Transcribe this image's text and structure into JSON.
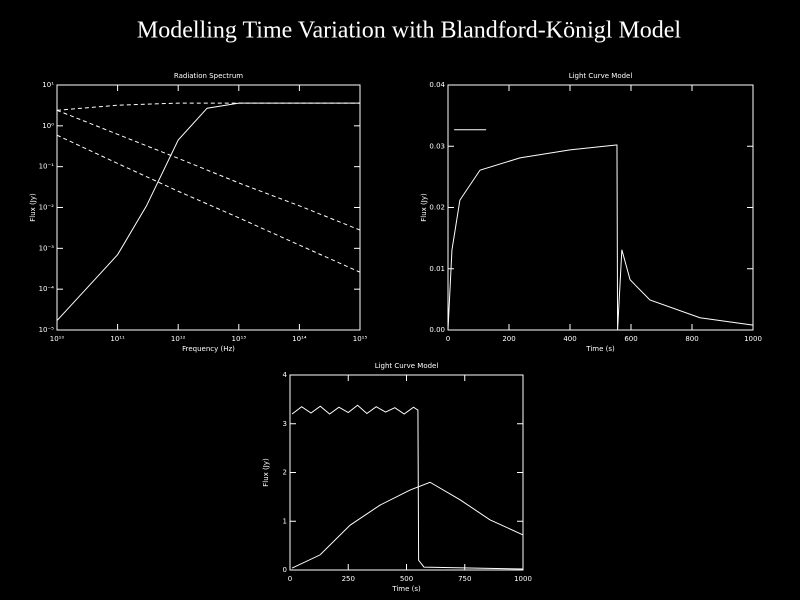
{
  "title": "Modelling Time Variation with Blandford-Königl Model",
  "chart_data": [
    {
      "type": "line",
      "title": "Radiation Spectrum",
      "x_label": "Frequency (Hz)",
      "y_label": "Flux (Jy)",
      "xscale": "log",
      "yscale": "log",
      "xlim": [
        10000000000.0,
        1000000000000000.0
      ],
      "ylim": [
        1e-05,
        10
      ],
      "xticks": [
        {
          "value": 10000000000.0,
          "label": "10¹⁰"
        },
        {
          "value": 100000000000.0,
          "label": "10¹¹"
        },
        {
          "value": 1000000000000.0,
          "label": "10¹²"
        },
        {
          "value": 10000000000000.0,
          "label": "10¹³"
        },
        {
          "value": 100000000000000.0,
          "label": "10¹⁴"
        },
        {
          "value": 1000000000000000.0,
          "label": "10¹⁵"
        }
      ],
      "yticks": [
        {
          "value": 1e-05,
          "label": "10⁻⁵"
        },
        {
          "value": 0.0001,
          "label": "10⁻⁴"
        },
        {
          "value": 0.001,
          "label": "10⁻³"
        },
        {
          "value": 0.01,
          "label": "10⁻²"
        },
        {
          "value": 0.1,
          "label": "10⁻¹"
        },
        {
          "value": 1,
          "label": "10⁰"
        },
        {
          "value": 10,
          "label": "10¹"
        }
      ],
      "series": [
        {
          "color": "#ffffff",
          "dash": false,
          "x": [
            10000000000.0,
            30000000000.0,
            100000000000.0,
            300000000000.0,
            1000000000000.0,
            3000000000000.0,
            10000000000000.0,
            100000000000000.0,
            1000000000000000.0
          ],
          "values": [
            1.7e-05,
            0.0001,
            0.0007,
            0.011,
            0.45,
            2.7,
            3.6,
            3.6,
            3.6
          ]
        },
        {
          "color": "#ffffff",
          "dash": true,
          "x": [
            10000000000.0,
            100000000000.0,
            1000000000000.0,
            10000000000000.0,
            100000000000000.0,
            1000000000000000.0
          ],
          "values": [
            2.4,
            3.2,
            3.6,
            3.6,
            3.6,
            3.6
          ]
        },
        {
          "color": "#ffffff",
          "dash": true,
          "x": [
            10000000000.0,
            100000000000.0,
            1000000000000.0,
            10000000000000.0,
            100000000000000.0,
            1000000000000000.0
          ],
          "values": [
            2.4,
            0.62,
            0.16,
            0.04,
            0.011,
            0.0028
          ]
        },
        {
          "color": "#ffffff",
          "dash": true,
          "x": [
            10000000000.0,
            100000000000.0,
            1000000000000.0,
            10000000000000.0,
            100000000000000.0,
            1000000000000000.0
          ],
          "values": [
            0.59,
            0.12,
            0.025,
            0.0056,
            0.0012,
            0.00026
          ]
        }
      ]
    },
    {
      "type": "line",
      "title": "Light Curve Model",
      "x_label": "Time (s)",
      "y_label": "Flux (Jy)",
      "xscale": "linear",
      "yscale": "linear",
      "xlim": [
        0,
        1000
      ],
      "ylim": [
        0,
        0.04
      ],
      "xticks": [
        0,
        200,
        400,
        600,
        800,
        1000
      ],
      "yticks": [
        {
          "value": 0,
          "label": "0.00"
        },
        0.01,
        0.02,
        0.03,
        0.04
      ],
      "series": [
        {
          "color": "#ffffff",
          "dash": false,
          "x": [
            0,
            13,
            39,
            105,
            236,
            400,
            551,
            554,
            556,
            570,
            597,
            662,
            826,
            1000
          ],
          "values": [
            0,
            0.0131,
            0.0212,
            0.0261,
            0.0281,
            0.0294,
            0.0302,
            0.0302,
            0,
            0.0131,
            0.0082,
            0.0049,
            0.002,
            0.0008
          ]
        },
        {
          "color": "#ffffff",
          "dash": false,
          "x": [
            20,
            125
          ],
          "values": [
            0.0327,
            0.0327
          ]
        }
      ]
    },
    {
      "type": "line",
      "title": "Light Curve Model",
      "x_label": "Time (s)",
      "y_label": "Flux (Jy)",
      "xscale": "linear",
      "yscale": "linear",
      "xlim": [
        0,
        1000
      ],
      "ylim": [
        0,
        4
      ],
      "xticks": [
        0,
        250,
        500,
        750,
        1000
      ],
      "yticks": [
        0,
        1,
        2,
        3,
        4
      ],
      "series": [
        {
          "color": "#ffffff",
          "dash": false,
          "x": [
            9,
            50,
            90,
            130,
            170,
            210,
            250,
            290,
            330,
            370,
            410,
            450,
            490,
            530,
            549,
            552,
            575,
            1000
          ],
          "values": [
            3.2,
            3.35,
            3.22,
            3.36,
            3.2,
            3.34,
            3.23,
            3.38,
            3.21,
            3.35,
            3.24,
            3.33,
            3.2,
            3.34,
            3.28,
            0.2,
            0.06,
            0.02
          ]
        },
        {
          "color": "#ffffff",
          "dash": false,
          "x": [
            9,
            129,
            258,
            386,
            515,
            601,
            730,
            858,
            1000
          ],
          "values": [
            0.04,
            0.31,
            0.92,
            1.33,
            1.64,
            1.8,
            1.44,
            1.03,
            0.72
          ]
        }
      ]
    }
  ]
}
